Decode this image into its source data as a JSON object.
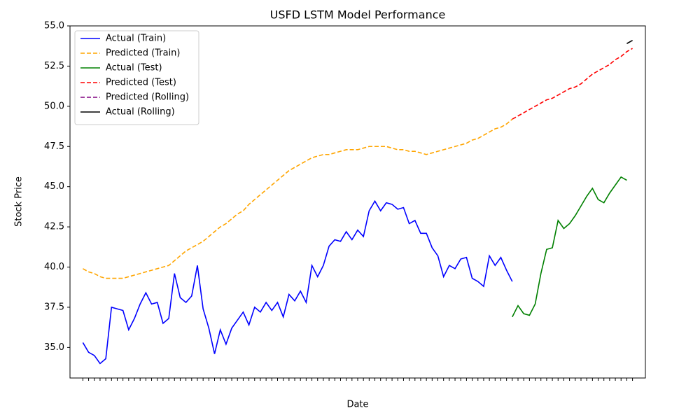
{
  "chart_data": {
    "type": "line",
    "title": "USFD LSTM Model Performance",
    "xlabel": "Date",
    "ylabel": "Stock Price",
    "categories": [
      null,
      null,
      null,
      null,
      null,
      null,
      null,
      null,
      null,
      null,
      null,
      null,
      null,
      null,
      null,
      null,
      null,
      null,
      null,
      null,
      null,
      null,
      null,
      null,
      null,
      null,
      null,
      null,
      null,
      null,
      null,
      null,
      null,
      null,
      null,
      null,
      null,
      null,
      null,
      null,
      null,
      null,
      null,
      null,
      null,
      null,
      null,
      null,
      null,
      null,
      null,
      null,
      null,
      null,
      null,
      null,
      null,
      null,
      null,
      null,
      null,
      null,
      null,
      null,
      null,
      null,
      null,
      null,
      null,
      null,
      null,
      null,
      null,
      null,
      null,
      null,
      null,
      null,
      null,
      null,
      null,
      null,
      null,
      null,
      null,
      null,
      null,
      null,
      null,
      null,
      null,
      null,
      null,
      null,
      null,
      null,
      null
    ],
    "ylim": [
      33.1,
      55
    ],
    "yticks": [
      {
        "value": 35,
        "label": "35.0"
      },
      37.5,
      {
        "value": 40,
        "label": "40.0"
      },
      42.5,
      {
        "value": 45,
        "label": "45.0"
      },
      47.5,
      {
        "value": 50,
        "label": "50.0"
      },
      52.5,
      {
        "value": 55,
        "label": "55.0"
      }
    ],
    "legend": "upper left",
    "series": [
      {
        "name": "Actual (Train)",
        "color": "#0000ff",
        "dashed": false,
        "values": [
          35.3,
          34.7,
          34.5,
          34.0,
          34.3,
          37.5,
          37.4,
          37.3,
          36.1,
          36.8,
          37.7,
          38.4,
          37.7,
          37.8,
          36.5,
          36.8,
          39.6,
          38.1,
          37.8,
          38.2,
          40.1,
          37.4,
          36.2,
          34.6,
          36.1,
          35.2,
          36.2,
          36.7,
          37.2,
          36.4,
          37.5,
          37.2,
          37.8,
          37.3,
          37.8,
          36.9,
          38.3,
          37.9,
          38.5,
          37.8,
          40.1,
          39.4,
          40.1,
          41.3,
          41.7,
          41.6,
          42.2,
          41.7,
          42.3,
          41.9,
          43.5,
          44.1,
          43.5,
          44.0,
          43.9,
          43.6,
          43.7,
          42.7,
          42.9,
          42.1,
          42.1,
          41.2,
          40.7,
          39.4,
          40.1,
          39.9,
          40.5,
          40.6,
          39.3,
          39.1,
          38.8,
          40.7,
          40.1,
          40.6,
          39.8,
          39.1,
          null,
          null,
          null,
          null,
          null,
          null,
          null,
          null,
          null,
          null,
          null,
          null,
          null,
          null,
          null,
          null,
          null,
          null,
          null,
          null,
          null
        ]
      },
      {
        "name": "Predicted (Train)",
        "color": "#ffa500",
        "dashed": true,
        "values": [
          39.9,
          39.7,
          39.6,
          39.4,
          39.3,
          39.3,
          39.3,
          39.3,
          39.4,
          39.5,
          39.6,
          39.7,
          39.8,
          39.9,
          40.0,
          40.1,
          40.4,
          40.7,
          41.0,
          41.2,
          41.4,
          41.6,
          41.9,
          42.2,
          42.5,
          42.7,
          43.0,
          43.3,
          43.5,
          43.9,
          44.2,
          44.5,
          44.8,
          45.1,
          45.4,
          45.7,
          46.0,
          46.2,
          46.4,
          46.6,
          46.8,
          46.9,
          47.0,
          47.0,
          47.1,
          47.2,
          47.3,
          47.3,
          47.3,
          47.4,
          47.5,
          47.5,
          47.5,
          47.5,
          47.4,
          47.3,
          47.3,
          47.2,
          47.2,
          47.1,
          47.0,
          47.1,
          47.2,
          47.3,
          47.4,
          47.5,
          47.6,
          47.7,
          47.9,
          48.0,
          48.2,
          48.4,
          48.6,
          48.7,
          48.9,
          49.2,
          null,
          null,
          null,
          null,
          null,
          null,
          null,
          null,
          null,
          null,
          null,
          null,
          null,
          null,
          null,
          null,
          null,
          null,
          null,
          null,
          null
        ]
      },
      {
        "name": "Actual (Test)",
        "color": "#008000",
        "dashed": false,
        "values": [
          null,
          null,
          null,
          null,
          null,
          null,
          null,
          null,
          null,
          null,
          null,
          null,
          null,
          null,
          null,
          null,
          null,
          null,
          null,
          null,
          null,
          null,
          null,
          null,
          null,
          null,
          null,
          null,
          null,
          null,
          null,
          null,
          null,
          null,
          null,
          null,
          null,
          null,
          null,
          null,
          null,
          null,
          null,
          null,
          null,
          null,
          null,
          null,
          null,
          null,
          null,
          null,
          null,
          null,
          null,
          null,
          null,
          null,
          null,
          null,
          null,
          null,
          null,
          null,
          null,
          null,
          null,
          null,
          null,
          null,
          null,
          null,
          null,
          null,
          null,
          36.9,
          37.6,
          37.1,
          37.0,
          37.7,
          39.6,
          41.1,
          41.2,
          42.9,
          42.4,
          42.7,
          43.2,
          43.8,
          44.4,
          44.9,
          44.2,
          44.0,
          44.6,
          45.1,
          45.6,
          45.4,
          null
        ]
      },
      {
        "name": "Predicted (Test)",
        "color": "#ff0000",
        "dashed": true,
        "values": [
          null,
          null,
          null,
          null,
          null,
          null,
          null,
          null,
          null,
          null,
          null,
          null,
          null,
          null,
          null,
          null,
          null,
          null,
          null,
          null,
          null,
          null,
          null,
          null,
          null,
          null,
          null,
          null,
          null,
          null,
          null,
          null,
          null,
          null,
          null,
          null,
          null,
          null,
          null,
          null,
          null,
          null,
          null,
          null,
          null,
          null,
          null,
          null,
          null,
          null,
          null,
          null,
          null,
          null,
          null,
          null,
          null,
          null,
          null,
          null,
          null,
          null,
          null,
          null,
          null,
          null,
          null,
          null,
          null,
          null,
          null,
          null,
          null,
          null,
          null,
          49.2,
          49.4,
          49.6,
          49.8,
          50.0,
          50.2,
          50.4,
          50.5,
          50.7,
          50.9,
          51.1,
          51.2,
          51.4,
          51.7,
          52.0,
          52.2,
          52.4,
          52.6,
          52.9,
          53.1,
          53.4,
          53.6
        ]
      },
      {
        "name": "Predicted (Rolling)",
        "color": "#800080",
        "dashed": true,
        "values": [
          null,
          null,
          null,
          null,
          null,
          null,
          null,
          null,
          null,
          null,
          null,
          null,
          null,
          null,
          null,
          null,
          null,
          null,
          null,
          null,
          null,
          null,
          null,
          null,
          null,
          null,
          null,
          null,
          null,
          null,
          null,
          null,
          null,
          null,
          null,
          null,
          null,
          null,
          null,
          null,
          null,
          null,
          null,
          null,
          null,
          null,
          null,
          null,
          null,
          null,
          null,
          null,
          null,
          null,
          null,
          null,
          null,
          null,
          null,
          null,
          null,
          null,
          null,
          null,
          null,
          null,
          null,
          null,
          null,
          null,
          null,
          null,
          null,
          null,
          null,
          null,
          null,
          null,
          null,
          null,
          null,
          null,
          null,
          null,
          null,
          null,
          null,
          null,
          null,
          null,
          null,
          null,
          null,
          null,
          null,
          null,
          53.6
        ]
      },
      {
        "name": "Actual (Rolling)",
        "color": "#000000",
        "dashed": false,
        "values": [
          null,
          null,
          null,
          null,
          null,
          null,
          null,
          null,
          null,
          null,
          null,
          null,
          null,
          null,
          null,
          null,
          null,
          null,
          null,
          null,
          null,
          null,
          null,
          null,
          null,
          null,
          null,
          null,
          null,
          null,
          null,
          null,
          null,
          null,
          null,
          null,
          null,
          null,
          null,
          null,
          null,
          null,
          null,
          null,
          null,
          null,
          null,
          null,
          null,
          null,
          null,
          null,
          null,
          null,
          null,
          null,
          null,
          null,
          null,
          null,
          null,
          null,
          null,
          null,
          null,
          null,
          null,
          null,
          null,
          null,
          null,
          null,
          null,
          null,
          null,
          null,
          null,
          null,
          null,
          null,
          null,
          null,
          null,
          null,
          null,
          null,
          null,
          null,
          null,
          null,
          null,
          null,
          null,
          null,
          null,
          53.9,
          54.1
        ]
      }
    ]
  }
}
